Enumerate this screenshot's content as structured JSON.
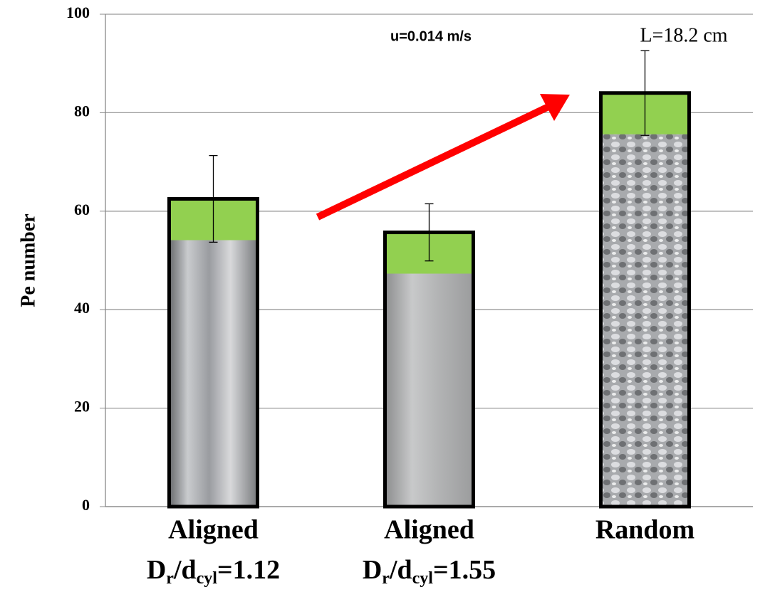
{
  "chart_data": {
    "type": "bar",
    "y_label": "Pe number",
    "categories": [
      "Aligned",
      "Aligned",
      "Random"
    ],
    "category_sublabels": [
      [
        "D",
        "r",
        "/d",
        "cyl",
        "=1.12"
      ],
      [
        "D",
        "r",
        "/d",
        "cyl",
        "=1.55"
      ],
      null
    ],
    "values": [
      62.5,
      55.7,
      84
    ],
    "errors": [
      8.8,
      5.8,
      8.6
    ],
    "color": "#92d050",
    "ylim": [
      0,
      100
    ],
    "yticks": [
      0,
      20,
      40,
      60,
      80,
      100
    ],
    "grid": true,
    "annotations": [
      "u=0.014 m/s",
      "L=18.2 cm"
    ]
  }
}
